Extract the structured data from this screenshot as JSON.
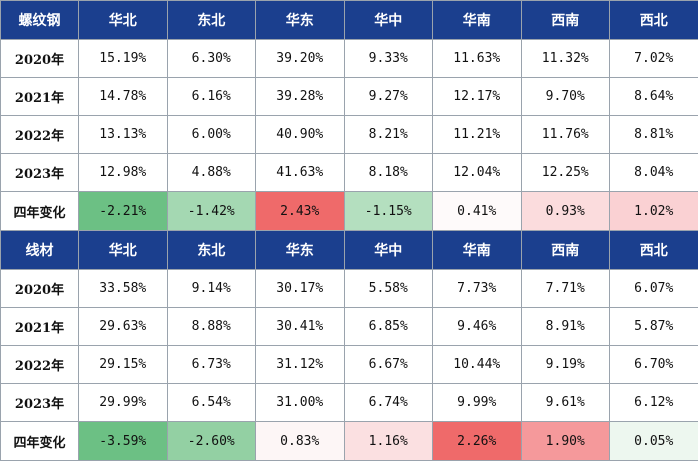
{
  "rebar": {
    "title": "螺纹钢",
    "regions": [
      "华北",
      "东北",
      "华东",
      "华中",
      "华南",
      "西南",
      "西北"
    ],
    "rows": [
      {
        "label": "2020年",
        "values": [
          "15.19%",
          "6.30%",
          "39.20%",
          "9.33%",
          "11.63%",
          "11.32%",
          "7.02%"
        ]
      },
      {
        "label": "2021年",
        "values": [
          "14.78%",
          "6.16%",
          "39.28%",
          "9.27%",
          "12.17%",
          "9.70%",
          "8.64%"
        ]
      },
      {
        "label": "2022年",
        "values": [
          "13.13%",
          "6.00%",
          "40.90%",
          "8.21%",
          "11.21%",
          "11.76%",
          "8.81%"
        ]
      },
      {
        "label": "2023年",
        "values": [
          "12.98%",
          "4.88%",
          "41.63%",
          "8.18%",
          "12.04%",
          "12.25%",
          "8.04%"
        ]
      }
    ],
    "change": {
      "label": "四年变化",
      "values": [
        "-2.21%",
        "-1.42%",
        "2.43%",
        "-1.15%",
        "0.41%",
        "0.93%",
        "1.02%"
      ],
      "colors": [
        "#6cc084",
        "#a4d8b2",
        "#ef6a6a",
        "#b4dfbf",
        "#fefafa",
        "#fbdcdd",
        "#fad1d3"
      ]
    }
  },
  "wire_rod": {
    "title": "线材",
    "regions": [
      "华北",
      "东北",
      "华东",
      "华中",
      "华南",
      "西南",
      "西北"
    ],
    "rows": [
      {
        "label": "2020年",
        "values": [
          "33.58%",
          "9.14%",
          "30.17%",
          "5.58%",
          "7.73%",
          "7.71%",
          "6.07%"
        ]
      },
      {
        "label": "2021年",
        "values": [
          "29.63%",
          "8.88%",
          "30.41%",
          "6.85%",
          "9.46%",
          "8.91%",
          "5.87%"
        ]
      },
      {
        "label": "2022年",
        "values": [
          "29.15%",
          "6.73%",
          "31.12%",
          "6.67%",
          "10.44%",
          "9.19%",
          "6.70%"
        ]
      },
      {
        "label": "2023年",
        "values": [
          "29.99%",
          "6.54%",
          "31.00%",
          "6.74%",
          "9.99%",
          "9.61%",
          "6.12%"
        ]
      }
    ],
    "change": {
      "label": "四年变化",
      "values": [
        "-3.59%",
        "-2.60%",
        "0.83%",
        "1.16%",
        "2.26%",
        "1.90%",
        "0.05%"
      ],
      "colors": [
        "#6cc084",
        "#93d0a3",
        "#fdf6f6",
        "#fbe0e1",
        "#ef6a6a",
        "#f5999b",
        "#edf7ef"
      ]
    }
  }
}
